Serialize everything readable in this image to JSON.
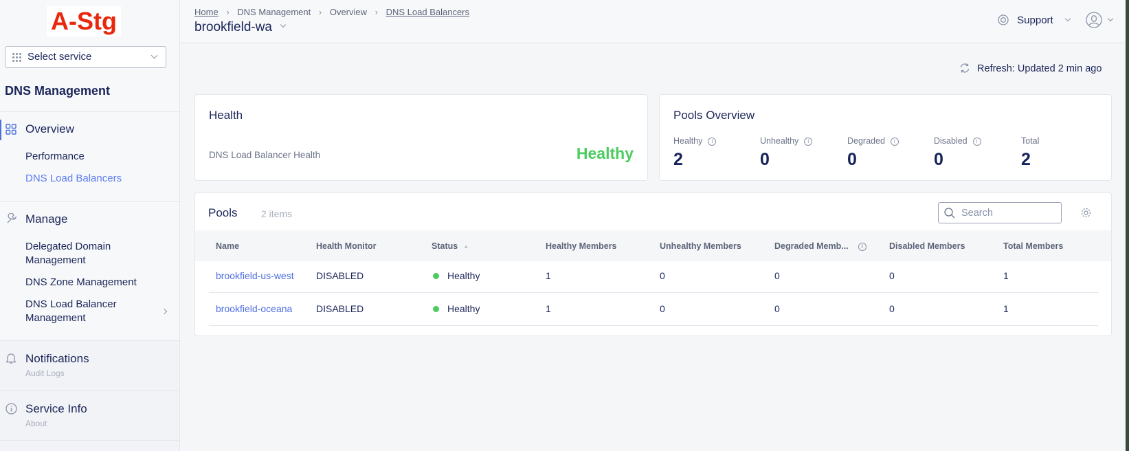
{
  "logo": "A-Stg",
  "sidebar": {
    "service_select": "Select service",
    "title": "DNS Management",
    "overview": {
      "label": "Overview",
      "items": [
        "Performance",
        "DNS Load Balancers"
      ]
    },
    "manage": {
      "label": "Manage",
      "items": [
        "Delegated Domain Management",
        "DNS Zone Management",
        "DNS Load Balancer Management"
      ]
    },
    "notifications": {
      "label": "Notifications",
      "sub": "Audit Logs"
    },
    "service_info": {
      "label": "Service Info",
      "sub": "About"
    }
  },
  "header": {
    "breadcrumb": [
      "Home",
      "DNS Management",
      "Overview",
      "DNS Load Balancers"
    ],
    "title": "brookfield-wa",
    "support": "Support"
  },
  "refresh": "Refresh: Updated 2 min ago",
  "health": {
    "title": "Health",
    "label": "DNS Load Balancer Health",
    "value": "Healthy",
    "color": "#4bcc5f"
  },
  "pools_overview": {
    "title": "Pools Overview",
    "stats": [
      {
        "label": "Healthy",
        "value": "2"
      },
      {
        "label": "Unhealthy",
        "value": "0"
      },
      {
        "label": "Degraded",
        "value": "0"
      },
      {
        "label": "Disabled",
        "value": "0"
      },
      {
        "label": "Total",
        "value": "2"
      }
    ]
  },
  "pools": {
    "title": "Pools",
    "count": "2 items",
    "search_placeholder": "Search",
    "columns": [
      "Name",
      "Health Monitor",
      "Status",
      "Healthy Members",
      "Unhealthy Members",
      "Degraded Memb...",
      "Disabled Members",
      "Total Members"
    ],
    "rows": [
      [
        "brookfield-us-west",
        "DISABLED",
        "Healthy",
        "1",
        "0",
        "0",
        "0",
        "1"
      ],
      [
        "brookfield-oceana",
        "DISABLED",
        "Healthy",
        "1",
        "0",
        "0",
        "0",
        "1"
      ]
    ]
  }
}
